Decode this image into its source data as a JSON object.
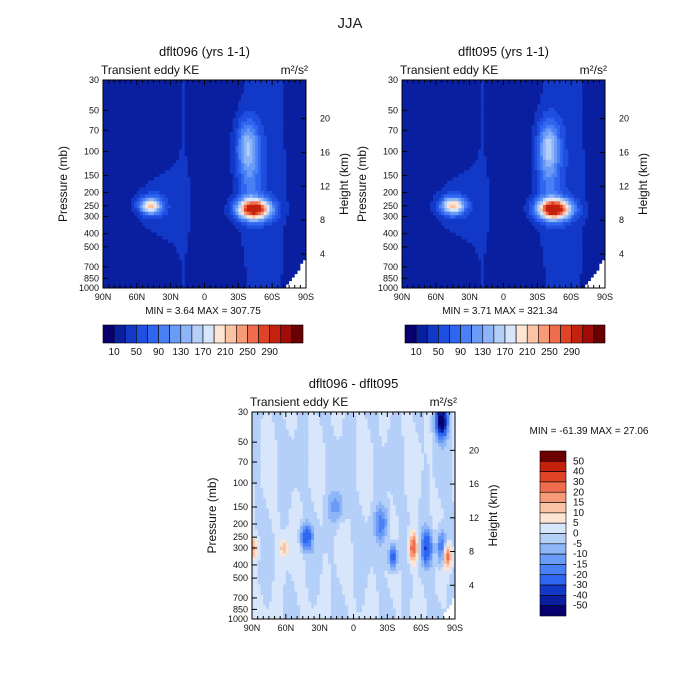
{
  "figure": {
    "title": "JJA"
  },
  "chart_data": [
    {
      "type": "heatmap",
      "title": "dflt096 (yrs 1-1)",
      "left_label": "Transient eddy KE",
      "unit_label": "m²/s²",
      "xlabel": "",
      "ylabel": "Pressure (mb)",
      "ylabel_right": "Height (km)",
      "x_ticks": [
        "90N",
        "60N",
        "30N",
        "0",
        "30S",
        "60S",
        "90S"
      ],
      "y_ticks": [
        30,
        50,
        70,
        100,
        150,
        200,
        250,
        300,
        400,
        500,
        700,
        850,
        1000
      ],
      "height_ticks": [
        4,
        8,
        12,
        16,
        20
      ],
      "ylim": [
        1000,
        30
      ],
      "xlim": [
        90,
        -90
      ],
      "stats_text": "MIN =    3.64   MAX =  307.75",
      "min": 3.64,
      "max": 307.75,
      "colorbar_labels": [
        "10",
        "50",
        "90",
        "130",
        "170",
        "210",
        "250",
        "290"
      ],
      "colorbar_levels": [
        10,
        30,
        50,
        70,
        90,
        110,
        130,
        150,
        170,
        190,
        210,
        230,
        250,
        270,
        290
      ],
      "colors": [
        "#08006e",
        "#0a1fa0",
        "#1238c8",
        "#1f4fe0",
        "#2f66f0",
        "#4a80f5",
        "#6a9bf7",
        "#8eb5f8",
        "#b4cff8",
        "#d7e6fb",
        "#fde4d3",
        "#fbc3a5",
        "#f69a78",
        "#ef6d4d",
        "#e04426",
        "#c5210f",
        "#a00c07",
        "#6a0000"
      ],
      "features": [
        {
          "lat": 48,
          "p": 250,
          "peak": 200,
          "wlat": 9,
          "wlogp": 0.13
        },
        {
          "lat": -44,
          "p": 265,
          "peak": 307.75,
          "wlat": 14,
          "wlogp": 0.16
        },
        {
          "lat": -38,
          "p": 90,
          "peak": 120,
          "wlat": 9,
          "wlogp": 0.4
        }
      ]
    },
    {
      "type": "heatmap",
      "title": "dflt095 (yrs 1-1)",
      "left_label": "Transient eddy KE",
      "unit_label": "m²/s²",
      "xlabel": "",
      "ylabel": "Pressure (mb)",
      "ylabel_right": "Height (km)",
      "x_ticks": [
        "90N",
        "60N",
        "30N",
        "0",
        "30S",
        "60S",
        "90S"
      ],
      "y_ticks": [
        30,
        50,
        70,
        100,
        150,
        200,
        250,
        300,
        400,
        500,
        700,
        850,
        1000
      ],
      "height_ticks": [
        4,
        8,
        12,
        16,
        20
      ],
      "ylim": [
        1000,
        30
      ],
      "xlim": [
        90,
        -90
      ],
      "stats_text": "MIN =    3.71   MAX =  321.34",
      "min": 3.71,
      "max": 321.34,
      "colorbar_labels": [
        "10",
        "50",
        "90",
        "130",
        "170",
        "210",
        "250",
        "290"
      ],
      "colorbar_levels": [
        10,
        30,
        50,
        70,
        90,
        110,
        130,
        150,
        170,
        190,
        210,
        230,
        250,
        270,
        290
      ],
      "colors": [
        "#08006e",
        "#0a1fa0",
        "#1238c8",
        "#1f4fe0",
        "#2f66f0",
        "#4a80f5",
        "#6a9bf7",
        "#8eb5f8",
        "#b4cff8",
        "#d7e6fb",
        "#fde4d3",
        "#fbc3a5",
        "#f69a78",
        "#ef6d4d",
        "#e04426",
        "#c5210f",
        "#a00c07",
        "#6a0000"
      ],
      "features": [
        {
          "lat": 45,
          "p": 250,
          "peak": 205,
          "wlat": 10,
          "wlogp": 0.13
        },
        {
          "lat": -45,
          "p": 265,
          "peak": 321.34,
          "wlat": 14,
          "wlogp": 0.16
        },
        {
          "lat": -40,
          "p": 90,
          "peak": 125,
          "wlat": 9,
          "wlogp": 0.4
        }
      ]
    },
    {
      "type": "heatmap",
      "title": "dflt096 - dflt095",
      "left_label": "Transient eddy KE",
      "unit_label": "m²/s²",
      "xlabel": "",
      "ylabel": "Pressure (mb)",
      "ylabel_right": "Height (km)",
      "x_ticks": [
        "90N",
        "60N",
        "30N",
        "0",
        "30S",
        "60S",
        "90S"
      ],
      "y_ticks": [
        30,
        50,
        70,
        100,
        150,
        200,
        250,
        300,
        400,
        500,
        700,
        850,
        1000
      ],
      "height_ticks": [
        4,
        8,
        12,
        16,
        20
      ],
      "ylim": [
        1000,
        30
      ],
      "xlim": [
        90,
        -90
      ],
      "stats_text": "MIN =  -61.39   MAX =   27.06",
      "min": -61.39,
      "max": 27.06,
      "colorbar_labels": [
        "50",
        "40",
        "30",
        "20",
        "15",
        "10",
        "5",
        "0",
        "-5",
        "-10",
        "-15",
        "-20",
        "-30",
        "-40",
        "-50"
      ],
      "colorbar_levels": [
        -50,
        -40,
        -30,
        -20,
        -15,
        -10,
        -5,
        0,
        5,
        10,
        15,
        20,
        30,
        40,
        50
      ],
      "colors": [
        "#08006e",
        "#0a1fa0",
        "#1238c8",
        "#2f66f0",
        "#4a80f5",
        "#6a9bf7",
        "#8eb5f8",
        "#b4cff8",
        "#d7e6fb",
        "#fde4d3",
        "#fbc3a5",
        "#f69a78",
        "#ef6d4d",
        "#e04426",
        "#c5210f",
        "#6a0000"
      ],
      "features": [
        {
          "lat": 90,
          "p": 300,
          "peak": 15,
          "wlat": 6,
          "wlogp": 0.18
        },
        {
          "lat": 62,
          "p": 300,
          "peak": 12,
          "wlat": 4,
          "wlogp": 0.15
        },
        {
          "lat": 42,
          "p": 250,
          "peak": -28,
          "wlat": 5,
          "wlogp": 0.2
        },
        {
          "lat": 15,
          "p": 150,
          "peak": -12,
          "wlat": 8,
          "wlogp": 0.25
        },
        {
          "lat": -25,
          "p": 200,
          "peak": -18,
          "wlat": 6,
          "wlogp": 0.3
        },
        {
          "lat": -35,
          "p": 350,
          "peak": -28,
          "wlat": 4,
          "wlogp": 0.2
        },
        {
          "lat": -53,
          "p": 300,
          "peak": 27.06,
          "wlat": 4,
          "wlogp": 0.25
        },
        {
          "lat": -65,
          "p": 300,
          "peak": -30,
          "wlat": 5,
          "wlogp": 0.28
        },
        {
          "lat": -78,
          "p": 35,
          "peak": -61.39,
          "wlat": 5,
          "wlogp": 0.25
        },
        {
          "lat": -78,
          "p": 300,
          "peak": -25,
          "wlat": 4,
          "wlogp": 0.3
        },
        {
          "lat": -83,
          "p": 350,
          "peak": 25,
          "wlat": 4,
          "wlogp": 0.2
        }
      ]
    }
  ]
}
